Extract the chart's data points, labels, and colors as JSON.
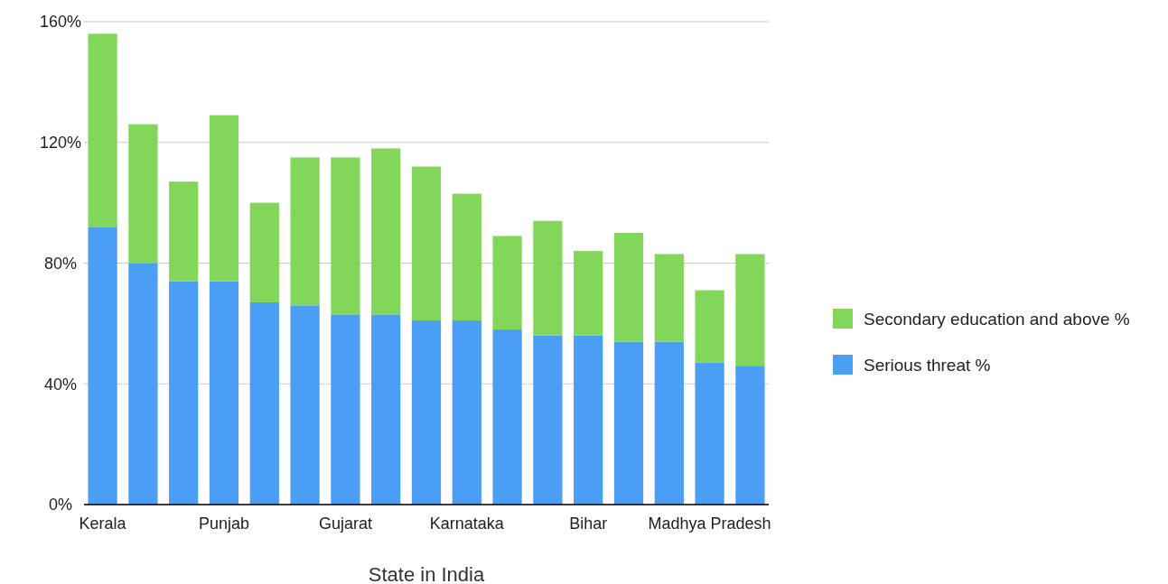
{
  "chart_data": {
    "type": "bar",
    "stacked": true,
    "xlabel": "State in India",
    "categories": [
      "Kerala",
      null,
      null,
      "Punjab",
      null,
      null,
      "Gujarat",
      null,
      null,
      "Karnataka",
      null,
      null,
      "Bihar",
      null,
      null,
      "Madhya Pradesh",
      null
    ],
    "series": [
      {
        "name": "Serious threat %",
        "color": "#4a9ff5",
        "values": [
          92,
          80,
          74,
          74,
          67,
          66,
          63,
          63,
          61,
          61,
          58,
          56,
          56,
          54,
          54,
          47,
          46
        ]
      },
      {
        "name": "Secondary education and above %",
        "color": "#82d65a",
        "values": [
          64,
          46,
          33,
          55,
          33,
          49,
          52,
          55,
          51,
          42,
          31,
          38,
          28,
          36,
          29,
          24,
          37
        ]
      }
    ],
    "ylim": [
      0,
      160
    ],
    "yticks": [
      {
        "value": 0,
        "label": "0%"
      },
      {
        "value": 40,
        "label": "40%"
      },
      {
        "value": 80,
        "label": "80%"
      },
      {
        "value": 120,
        "label": "120%"
      },
      {
        "value": 160,
        "label": "160%"
      }
    ],
    "grid": "y",
    "legend": "right"
  }
}
